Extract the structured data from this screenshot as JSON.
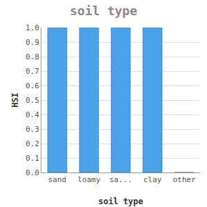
{
  "chart_data": {
    "type": "bar",
    "title": "soil type",
    "x_label": "soil type",
    "y_label": "HSI",
    "categories": [
      "sand",
      "loamy",
      "sa...",
      "clay",
      "other"
    ],
    "values": [
      1.0,
      1.0,
      1.0,
      1.0,
      0
    ],
    "color": "#4aa3e8",
    "ylim": [
      0,
      1
    ],
    "yticks": [
      {
        "value": 0,
        "label": "0.0"
      },
      0.1,
      0.2,
      0.3,
      0.4,
      0.5,
      0.6,
      0.7,
      0.8,
      0.9,
      {
        "value": 1,
        "label": "1.0"
      }
    ],
    "grid": true
  }
}
